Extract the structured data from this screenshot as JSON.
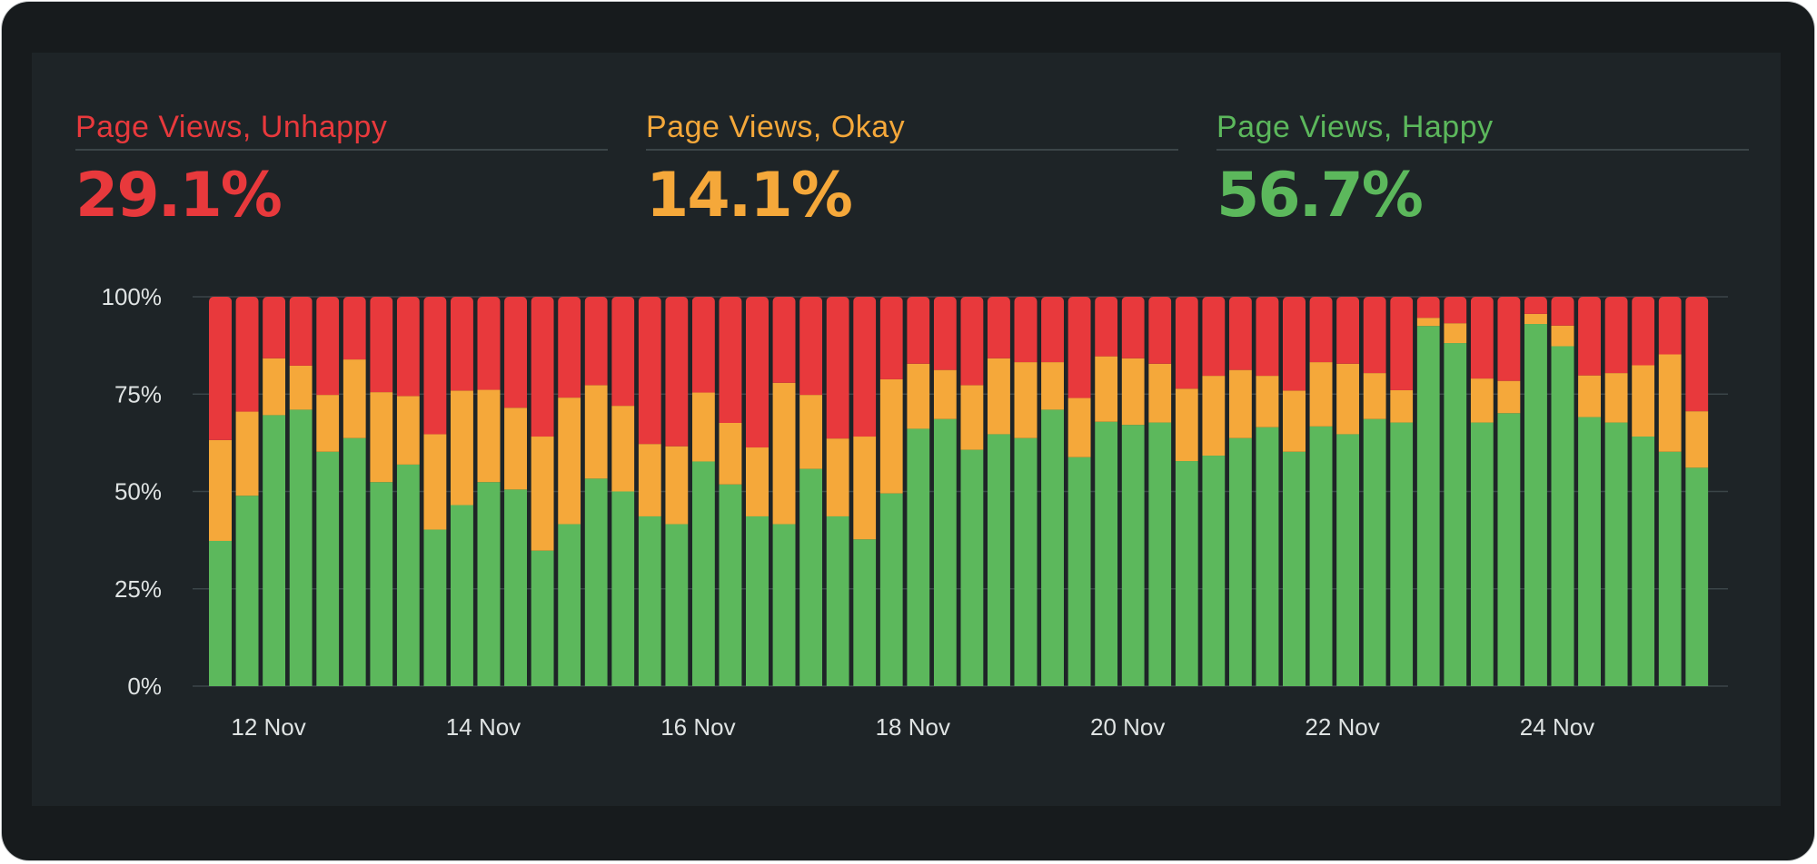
{
  "colors": {
    "unhappy": "#e8393c",
    "okay": "#f5a83a",
    "happy": "#5cb85c",
    "frame": "#171b1d",
    "panel": "#1e2427",
    "grid": "#3b4548",
    "axis_text": "#dfe3e3"
  },
  "stats": [
    {
      "label": "Page Views, Unhappy",
      "value": "29.1%",
      "color": "#e8393c"
    },
    {
      "label": "Page Views, Okay",
      "value": "14.1%",
      "color": "#f5a83a"
    },
    {
      "label": "Page Views, Happy",
      "value": "56.7%",
      "color": "#5cb85c"
    }
  ],
  "chart_data": {
    "type": "bar",
    "stacked": true,
    "normalized": true,
    "title": "",
    "xlabel": "",
    "ylabel": "",
    "ylim": [
      0,
      100
    ],
    "grid": true,
    "yticks": [
      0,
      25,
      50,
      75,
      100
    ],
    "ytick_labels": [
      "0%",
      "25%",
      "50%",
      "75%",
      "100%"
    ],
    "bars_per_day": 4,
    "xtick_labels": [
      {
        "label": "12 Nov",
        "bar_index": 2
      },
      {
        "label": "14 Nov",
        "bar_index": 10
      },
      {
        "label": "16 Nov",
        "bar_index": 18
      },
      {
        "label": "18 Nov",
        "bar_index": 26
      },
      {
        "label": "20 Nov",
        "bar_index": 34
      },
      {
        "label": "22 Nov",
        "bar_index": 42
      },
      {
        "label": "24 Nov",
        "bar_index": 50
      }
    ],
    "series": [
      {
        "name": "Happy",
        "color": "#5cb85c",
        "values": [
          37.3,
          48.9,
          69.6,
          71.0,
          60.2,
          63.7,
          52.4,
          56.9,
          40.2,
          46.5,
          52.4,
          50.5,
          34.8,
          41.6,
          53.3,
          50.0,
          43.6,
          41.6,
          57.7,
          51.8,
          43.6,
          41.6,
          55.8,
          43.6,
          37.7,
          49.5,
          66.1,
          68.6,
          60.7,
          64.7,
          63.7,
          71.0,
          58.8,
          67.9,
          67.1,
          67.7,
          57.8,
          59.2,
          63.7,
          66.5,
          60.2,
          66.7,
          64.7,
          68.6,
          67.7,
          92.5,
          88.1,
          67.7,
          70.1,
          93.0,
          87.3,
          69.1,
          67.7,
          64.1,
          60.2,
          56.1
        ]
      },
      {
        "name": "Okay",
        "color": "#f5a83a",
        "values": [
          25.9,
          21.6,
          14.6,
          11.3,
          14.6,
          20.2,
          23.1,
          17.6,
          24.5,
          29.4,
          23.7,
          21.0,
          29.3,
          32.5,
          24.0,
          22.0,
          18.6,
          20.0,
          17.7,
          15.8,
          17.7,
          36.3,
          19.0,
          20.0,
          26.4,
          29.3,
          16.7,
          12.6,
          16.6,
          19.5,
          19.5,
          12.2,
          15.2,
          16.8,
          17.1,
          15.1,
          18.6,
          20.5,
          17.5,
          13.2,
          15.7,
          16.5,
          18.1,
          11.8,
          8.3,
          2.1,
          5.1,
          11.3,
          8.3,
          2.6,
          5.3,
          10.7,
          12.7,
          18.3,
          25.0,
          14.5
        ]
      },
      {
        "name": "Unhappy",
        "color": "#e8393c",
        "values": [
          36.8,
          29.5,
          15.8,
          17.7,
          25.2,
          16.1,
          24.5,
          25.5,
          35.3,
          24.1,
          23.9,
          28.5,
          35.9,
          25.9,
          22.7,
          28.0,
          37.8,
          38.4,
          24.6,
          32.4,
          38.7,
          22.1,
          25.2,
          36.4,
          35.9,
          21.2,
          17.2,
          18.8,
          22.7,
          15.8,
          16.8,
          16.8,
          26.0,
          15.3,
          15.8,
          17.2,
          23.6,
          20.3,
          18.8,
          20.3,
          24.1,
          16.8,
          17.2,
          19.6,
          24.0,
          5.4,
          6.8,
          21.0,
          21.6,
          4.4,
          7.4,
          20.2,
          19.6,
          17.6,
          14.8,
          29.4
        ]
      }
    ]
  }
}
